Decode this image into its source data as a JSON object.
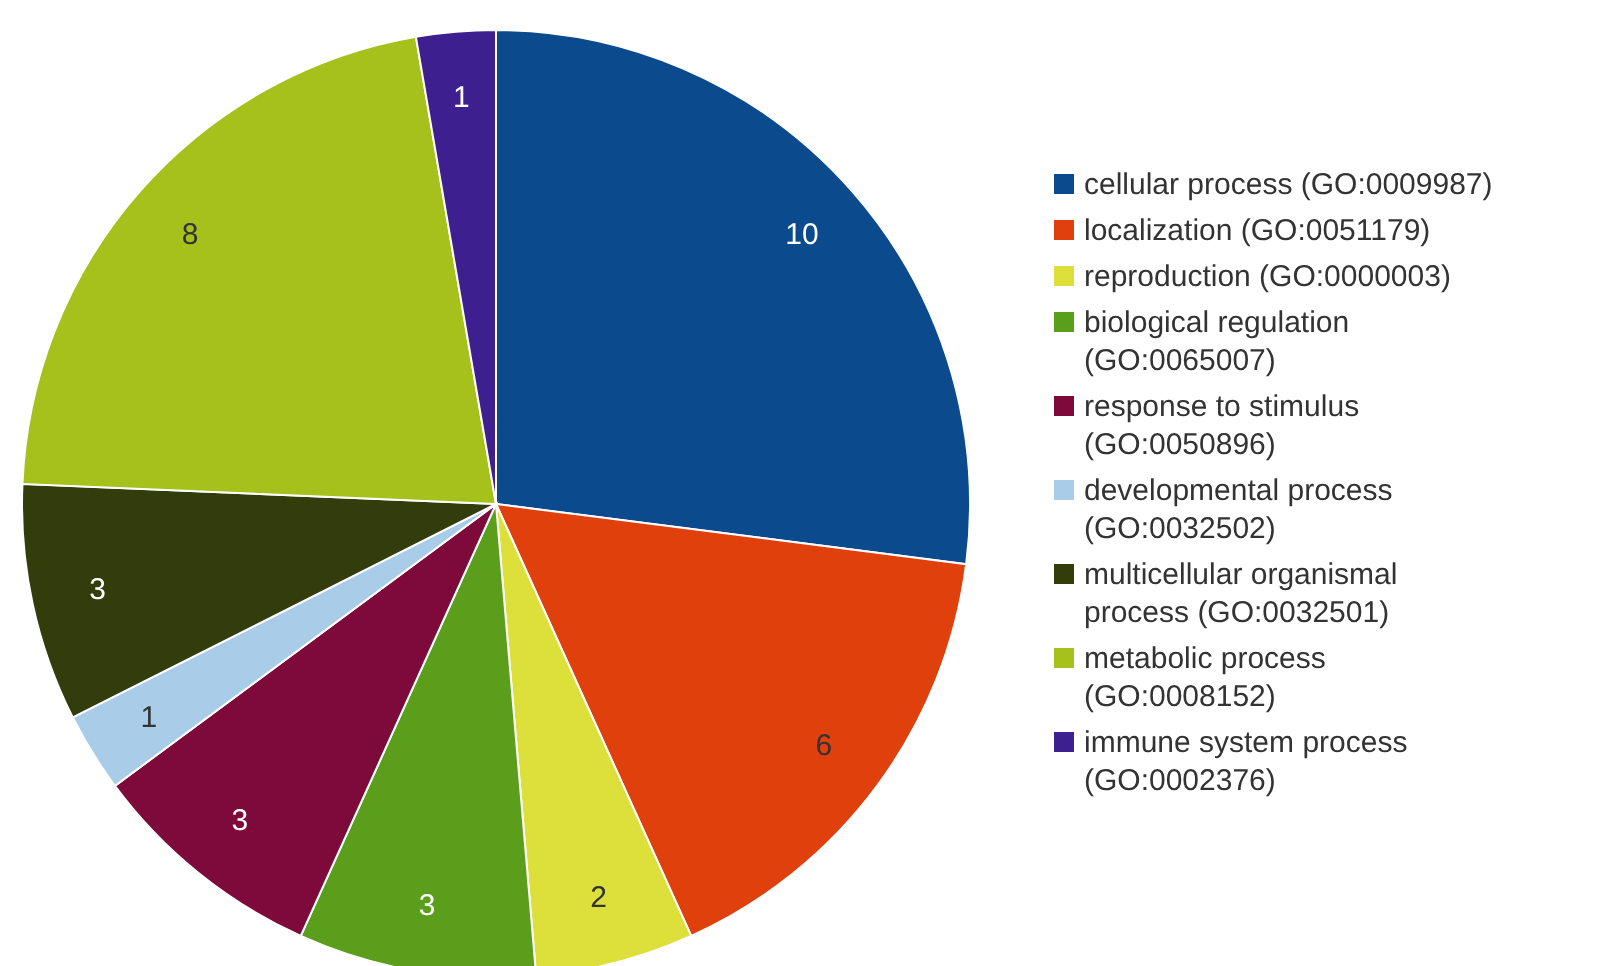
{
  "chart_data": {
    "type": "pie",
    "categories": [
      "cellular process (GO:0009987)",
      "localization (GO:0051179)",
      "reproduction (GO:0000003)",
      "biological regulation (GO:0065007)",
      "response to stimulus (GO:0050896)",
      "developmental process (GO:0032502)",
      "multicellular organismal process (GO:0032501)",
      "metabolic process (GO:0008152)",
      "immune system process (GO:0002376)"
    ],
    "values": [
      10,
      6,
      2,
      3,
      3,
      1,
      3,
      8,
      1
    ],
    "colors": [
      "#0b4a8c",
      "#e0400c",
      "#dde03a",
      "#5a9e1c",
      "#7e0a3c",
      "#a9cce8",
      "#333d0c",
      "#a6c11c",
      "#3d1f8f"
    ],
    "data_labels": true,
    "legend": "right"
  }
}
